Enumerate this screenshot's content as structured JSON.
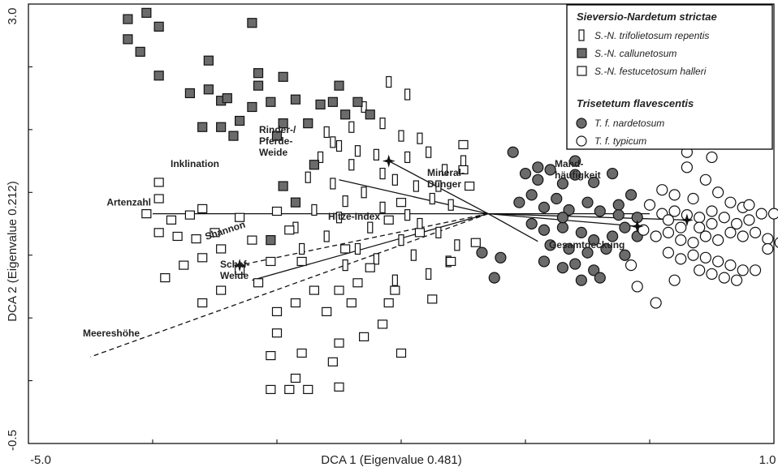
{
  "chart_data": {
    "type": "scatter",
    "xlabel": "DCA 1 (Eigenvalue 0.481)",
    "ylabel": "DCA 2 (Eigenvalue 0.212)",
    "xlim": [
      -5.0,
      1.0
    ],
    "ylim": [
      -0.5,
      3.0
    ],
    "x_tick_labels": [
      "-5.0",
      "1.0"
    ],
    "y_tick_labels": [
      "3.0",
      "-0.5"
    ],
    "legend": {
      "position": "top-right",
      "groups": [
        {
          "title": "Sieversio-Nardetum strictae",
          "items": [
            {
              "label": "S.-N. trifolietosum repentis",
              "marker": "narrow-rect",
              "fill": "#ffffff"
            },
            {
              "label": "S.-N. callunetosum",
              "marker": "square",
              "fill": "#6b6b6b"
            },
            {
              "label": "S.-N. festucetosum halleri",
              "marker": "square",
              "fill": "#ffffff"
            }
          ]
        },
        {
          "title": "Trisetetum flavescentis",
          "items": [
            {
              "label": "T. f. nardetosum",
              "marker": "circle",
              "fill": "#6b6b6b"
            },
            {
              "label": "T. f. typicum",
              "marker": "circle",
              "fill": "#ffffff"
            }
          ]
        }
      ]
    },
    "vectors": {
      "origin": [
        -1.3,
        1.33
      ],
      "items": [
        {
          "label": "Artenzahl",
          "end": [
            -4.0,
            1.33
          ],
          "style": "solid"
        },
        {
          "label": "Inklination",
          "end": [
            -2.5,
            1.6
          ],
          "style": "solid"
        },
        {
          "label": "Rinder-/ Pferde- Weide",
          "end": [
            -2.1,
            1.75
          ],
          "style": "solid"
        },
        {
          "label": "Shannon",
          "end": [
            -3.2,
            0.8
          ],
          "style": "solid"
        },
        {
          "label": "Schaf- Weide",
          "end": [
            -3.3,
            0.92
          ],
          "style": "dashed"
        },
        {
          "label": "Meereshöhe",
          "end": [
            -4.5,
            0.19
          ],
          "style": "dashed"
        },
        {
          "label": "Hitze-Index",
          "end": [
            -0.9,
            1.11
          ],
          "style": "solid"
        },
        {
          "label": "Mineral- Dünger",
          "end": [
            -0.1,
            1.23
          ],
          "style": "solid"
        },
        {
          "label": "Mahd- häufigkeit",
          "end": [
            0.0,
            1.33
          ],
          "style": "solid"
        },
        {
          "label": "Gesamtdeckung",
          "end": [
            0.3,
            1.28
          ],
          "style": "solid"
        }
      ]
    },
    "centroids": [
      {
        "label": "Rinder-/Pferde-Weide",
        "x": -2.1,
        "y": 1.75
      },
      {
        "label": "Schaf-Weide",
        "x": -3.3,
        "y": 0.92
      },
      {
        "label": "Mineral-Dünger",
        "x": -0.1,
        "y": 1.23
      },
      {
        "label": "Mahd",
        "x": 0.3,
        "y": 1.28
      }
    ],
    "series": [
      {
        "name": "S.-N. trifolietosum repentis",
        "points": [
          [
            -2.1,
            2.38
          ],
          [
            -1.95,
            2.28
          ],
          [
            -2.3,
            2.18
          ],
          [
            -2.15,
            2.05
          ],
          [
            -2.4,
            2.02
          ],
          [
            -2.6,
            1.98
          ],
          [
            -2.0,
            1.95
          ],
          [
            -1.85,
            1.93
          ],
          [
            -2.5,
            1.87
          ],
          [
            -2.35,
            1.83
          ],
          [
            -1.78,
            1.82
          ],
          [
            -2.2,
            1.8
          ],
          [
            -2.65,
            1.78
          ],
          [
            -1.95,
            1.78
          ],
          [
            -2.4,
            1.72
          ],
          [
            -1.65,
            1.68
          ],
          [
            -2.75,
            1.62
          ],
          [
            -2.05,
            1.6
          ],
          [
            -2.55,
            1.57
          ],
          [
            -1.88,
            1.55
          ],
          [
            -2.3,
            1.5
          ],
          [
            -1.75,
            1.45
          ],
          [
            -2.45,
            1.43
          ],
          [
            -1.6,
            1.4
          ],
          [
            -2.15,
            1.38
          ],
          [
            -2.7,
            1.36
          ],
          [
            -1.95,
            1.32
          ],
          [
            -2.5,
            1.3
          ],
          [
            -1.85,
            1.25
          ],
          [
            -2.25,
            1.22
          ],
          [
            -1.7,
            1.18
          ],
          [
            -2.6,
            1.15
          ],
          [
            -2.0,
            1.12
          ],
          [
            -1.55,
            1.08
          ],
          [
            -2.35,
            1.05
          ],
          [
            -2.8,
            1.05
          ],
          [
            -1.9,
            1.0
          ],
          [
            -2.2,
            0.97
          ],
          [
            -1.62,
            0.95
          ],
          [
            -2.45,
            0.92
          ],
          [
            -1.78,
            0.85
          ],
          [
            -2.05,
            0.8
          ],
          [
            -2.15,
            1.65
          ],
          [
            -2.55,
            1.9
          ],
          [
            -1.5,
            1.75
          ],
          [
            -1.7,
            1.55
          ],
          [
            -2.85,
            1.22
          ]
        ]
      },
      {
        "name": "S.-N. callunetosum",
        "points": [
          [
            -4.2,
            2.88
          ],
          [
            -4.2,
            2.72
          ],
          [
            -4.05,
            2.93
          ],
          [
            -4.1,
            2.62
          ],
          [
            -3.95,
            2.82
          ],
          [
            -3.95,
            2.43
          ],
          [
            -3.7,
            2.29
          ],
          [
            -3.55,
            2.55
          ],
          [
            -3.55,
            2.32
          ],
          [
            -3.45,
            2.23
          ],
          [
            -3.45,
            2.02
          ],
          [
            -3.3,
            2.07
          ],
          [
            -3.35,
            1.95
          ],
          [
            -3.2,
            2.18
          ],
          [
            -3.0,
            1.95
          ],
          [
            -3.15,
            2.35
          ],
          [
            -3.05,
            2.22
          ],
          [
            -2.95,
            2.05
          ],
          [
            -2.85,
            2.24
          ],
          [
            -2.75,
            2.05
          ],
          [
            -2.65,
            2.2
          ],
          [
            -2.55,
            2.22
          ],
          [
            -2.45,
            2.12
          ],
          [
            -2.35,
            2.22
          ],
          [
            -2.25,
            2.12
          ],
          [
            -3.15,
            2.45
          ],
          [
            -2.95,
            2.42
          ],
          [
            -3.4,
            2.25
          ],
          [
            -2.7,
            1.72
          ],
          [
            -2.95,
            1.55
          ],
          [
            -2.85,
            1.42
          ],
          [
            -3.05,
            1.12
          ],
          [
            -3.2,
            2.85
          ],
          [
            -2.5,
            2.35
          ],
          [
            -3.6,
            2.02
          ]
        ]
      },
      {
        "name": "S.-N. festucetosum halleri",
        "points": [
          [
            -3.95,
            1.58
          ],
          [
            -4.05,
            1.33
          ],
          [
            -3.85,
            1.28
          ],
          [
            -3.7,
            1.32
          ],
          [
            -3.6,
            1.37
          ],
          [
            -3.95,
            1.18
          ],
          [
            -3.8,
            1.15
          ],
          [
            -3.65,
            1.13
          ],
          [
            -3.5,
            1.18
          ],
          [
            -3.3,
            1.3
          ],
          [
            -3.2,
            1.12
          ],
          [
            -3.45,
            1.05
          ],
          [
            -3.6,
            0.98
          ],
          [
            -3.75,
            0.92
          ],
          [
            -3.9,
            0.82
          ],
          [
            -3.6,
            0.62
          ],
          [
            -3.45,
            0.72
          ],
          [
            -3.3,
            0.88
          ],
          [
            -3.15,
            0.78
          ],
          [
            -3.05,
            0.95
          ],
          [
            -3.0,
            1.35
          ],
          [
            -2.9,
            1.2
          ],
          [
            -2.8,
            0.95
          ],
          [
            -2.85,
            0.62
          ],
          [
            -2.7,
            0.72
          ],
          [
            -2.6,
            0.55
          ],
          [
            -2.5,
            0.72
          ],
          [
            -2.4,
            0.62
          ],
          [
            -2.35,
            0.78
          ],
          [
            -2.25,
            0.9
          ],
          [
            -2.45,
            1.05
          ],
          [
            -2.1,
            0.62
          ],
          [
            -2.15,
            0.45
          ],
          [
            -2.3,
            0.35
          ],
          [
            -2.5,
            0.3
          ],
          [
            -2.55,
            0.15
          ],
          [
            -2.8,
            0.22
          ],
          [
            -3.0,
            0.38
          ],
          [
            -3.0,
            0.55
          ],
          [
            -3.05,
            0.2
          ],
          [
            -2.5,
            -0.05
          ],
          [
            -2.85,
            0.02
          ],
          [
            -2.9,
            -0.07
          ],
          [
            -2.75,
            -0.07
          ],
          [
            -3.05,
            -0.07
          ],
          [
            -2.0,
            0.22
          ],
          [
            -1.6,
            0.95
          ],
          [
            -1.4,
            1.1
          ],
          [
            -1.85,
            1.18
          ],
          [
            -2.0,
            1.42
          ],
          [
            -2.1,
            1.28
          ],
          [
            -1.45,
            1.55
          ],
          [
            -1.5,
            1.68
          ],
          [
            -1.5,
            1.88
          ],
          [
            -2.05,
            0.72
          ],
          [
            -1.75,
            0.65
          ],
          [
            -3.95,
            1.45
          ]
        ]
      },
      {
        "name": "T. f. nardetosum",
        "points": [
          [
            -1.1,
            1.82
          ],
          [
            -1.0,
            1.65
          ],
          [
            -0.9,
            1.6
          ],
          [
            -0.8,
            1.68
          ],
          [
            -0.7,
            1.57
          ],
          [
            -0.6,
            1.64
          ],
          [
            -0.45,
            1.58
          ],
          [
            -0.3,
            1.65
          ],
          [
            -1.05,
            1.42
          ],
          [
            -0.95,
            1.48
          ],
          [
            -0.85,
            1.38
          ],
          [
            -0.75,
            1.45
          ],
          [
            -0.65,
            1.36
          ],
          [
            -0.5,
            1.42
          ],
          [
            -0.4,
            1.35
          ],
          [
            -0.25,
            1.4
          ],
          [
            -0.95,
            1.25
          ],
          [
            -0.85,
            1.2
          ],
          [
            -0.7,
            1.22
          ],
          [
            -0.55,
            1.18
          ],
          [
            -0.45,
            1.12
          ],
          [
            -0.3,
            1.15
          ],
          [
            -0.2,
            1.22
          ],
          [
            -0.1,
            1.15
          ],
          [
            -0.8,
            1.08
          ],
          [
            -0.65,
            1.05
          ],
          [
            -0.5,
            1.02
          ],
          [
            -0.35,
            1.05
          ],
          [
            -0.2,
            1.0
          ],
          [
            -0.85,
            0.95
          ],
          [
            -0.7,
            0.9
          ],
          [
            -0.6,
            0.93
          ],
          [
            -0.45,
            0.88
          ],
          [
            -0.4,
            0.82
          ],
          [
            -0.55,
            0.8
          ],
          [
            -0.25,
            1.32
          ],
          [
            -0.1,
            1.3
          ],
          [
            -1.2,
            0.98
          ],
          [
            -1.35,
            1.02
          ],
          [
            -1.25,
            0.82
          ],
          [
            -0.9,
            1.7
          ],
          [
            -0.7,
            1.3
          ],
          [
            -0.6,
            1.75
          ],
          [
            -0.15,
            1.48
          ]
        ]
      },
      {
        "name": "T. f. typicum",
        "points": [
          [
            0.3,
            1.82
          ],
          [
            0.5,
            1.78
          ],
          [
            0.3,
            1.7
          ],
          [
            0.1,
            1.52
          ],
          [
            0.2,
            1.48
          ],
          [
            0.35,
            1.45
          ],
          [
            0.45,
            1.6
          ],
          [
            0.55,
            1.5
          ],
          [
            0.65,
            1.42
          ],
          [
            0.75,
            1.38
          ],
          [
            0.0,
            1.4
          ],
          [
            0.1,
            1.33
          ],
          [
            0.2,
            1.35
          ],
          [
            0.3,
            1.32
          ],
          [
            0.4,
            1.3
          ],
          [
            0.5,
            1.35
          ],
          [
            0.6,
            1.3
          ],
          [
            0.7,
            1.25
          ],
          [
            0.8,
            1.28
          ],
          [
            0.9,
            1.33
          ],
          [
            1.0,
            1.33
          ],
          [
            -0.05,
            1.2
          ],
          [
            0.05,
            1.15
          ],
          [
            0.15,
            1.18
          ],
          [
            0.25,
            1.12
          ],
          [
            0.35,
            1.1
          ],
          [
            0.45,
            1.15
          ],
          [
            0.55,
            1.12
          ],
          [
            0.65,
            1.18
          ],
          [
            0.75,
            1.15
          ],
          [
            0.85,
            1.18
          ],
          [
            0.95,
            1.13
          ],
          [
            0.15,
            1.02
          ],
          [
            0.25,
            0.97
          ],
          [
            0.35,
            1.0
          ],
          [
            0.45,
            0.98
          ],
          [
            0.55,
            0.95
          ],
          [
            0.65,
            0.92
          ],
          [
            0.75,
            0.88
          ],
          [
            0.85,
            0.88
          ],
          [
            0.4,
            0.88
          ],
          [
            0.5,
            0.85
          ],
          [
            0.6,
            0.82
          ],
          [
            0.7,
            0.8
          ],
          [
            0.2,
            0.8
          ],
          [
            0.05,
            0.62
          ],
          [
            -0.1,
            0.75
          ],
          [
            0.95,
            1.05
          ],
          [
            1.05,
            1.1
          ],
          [
            1.15,
            1.1
          ],
          [
            -0.15,
            0.92
          ],
          [
            0.25,
            1.22
          ],
          [
            0.4,
            1.22
          ],
          [
            0.5,
            1.25
          ],
          [
            0.15,
            1.28
          ],
          [
            0.8,
            1.4
          ]
        ]
      }
    ]
  }
}
